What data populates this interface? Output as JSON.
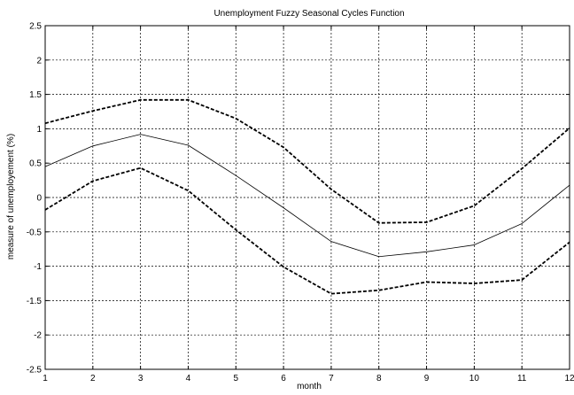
{
  "chart_data": {
    "type": "line",
    "title": "Unemployment Fuzzy Seasonal Cycles Function",
    "xlabel": "month",
    "ylabel": "measure of unemployement (%)",
    "x": [
      1,
      2,
      3,
      4,
      5,
      6,
      7,
      8,
      9,
      10,
      11,
      12
    ],
    "xlim": [
      1,
      12
    ],
    "ylim": [
      -2.5,
      2.5
    ],
    "x_ticks": [
      "1",
      "2",
      "3",
      "4",
      "5",
      "6",
      "7",
      "8",
      "9",
      "10",
      "11",
      "12"
    ],
    "y_ticks": [
      "2.5",
      "2",
      "1.5",
      "1",
      "0.5",
      "0",
      "-0.5",
      "-1",
      "-1.5",
      "-2",
      "-2.5"
    ],
    "grid": true,
    "series": [
      {
        "style": "dashed",
        "color": "#000000",
        "values": [
          1.08,
          1.26,
          1.42,
          1.42,
          1.15,
          0.73,
          0.12,
          -0.37,
          -0.36,
          -0.12,
          0.42,
          1.01
        ]
      },
      {
        "style": "solid",
        "color": "#000000",
        "values": [
          0.45,
          0.75,
          0.92,
          0.76,
          0.32,
          -0.15,
          -0.64,
          -0.86,
          -0.79,
          -0.69,
          -0.38,
          0.18
        ]
      },
      {
        "style": "dashed",
        "color": "#000000",
        "values": [
          -0.18,
          0.24,
          0.43,
          0.1,
          -0.47,
          -1.01,
          -1.4,
          -1.35,
          -1.23,
          -1.25,
          -1.2,
          -0.65
        ]
      }
    ]
  }
}
